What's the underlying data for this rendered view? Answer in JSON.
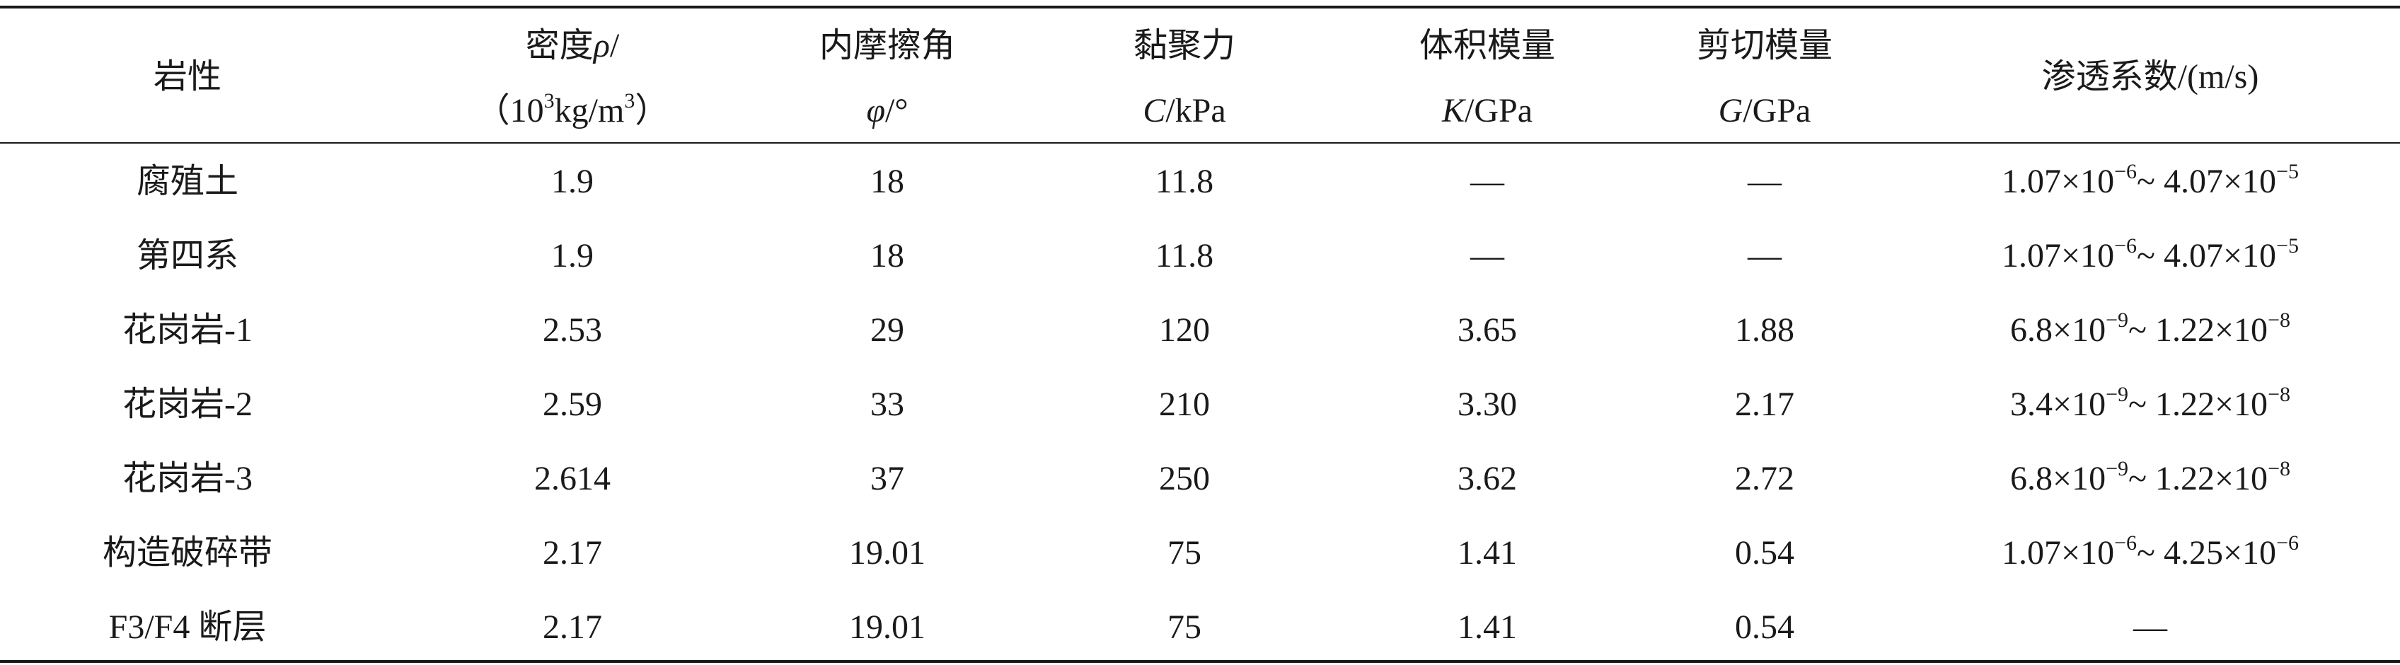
{
  "table": {
    "headers": [
      [
        [
          "岩性"
        ]
      ],
      [
        [
          "密度",
          {
            "i": "ρ"
          },
          "/"
        ],
        [
          "（10",
          {
            "sup": "3"
          },
          "kg/m",
          {
            "sup": "3"
          },
          "）"
        ]
      ],
      [
        [
          "内摩擦角"
        ],
        [
          {
            "i": "φ"
          },
          "/°"
        ]
      ],
      [
        [
          "黏聚力"
        ],
        [
          {
            "i": "C"
          },
          "/kPa"
        ]
      ],
      [
        [
          "体积模量"
        ],
        [
          {
            "i": "K"
          },
          "/GPa"
        ]
      ],
      [
        [
          "剪切模量"
        ],
        [
          {
            "i": "G"
          },
          "/GPa"
        ]
      ],
      [
        [
          "渗透系数/(m/s)"
        ]
      ]
    ],
    "rows": [
      [
        "腐殖土",
        "1.9",
        "18",
        "11.8",
        "—",
        "—",
        [
          "1.07×10",
          {
            "sup": "−6"
          },
          "~ 4.07×10",
          {
            "sup": "−5"
          }
        ]
      ],
      [
        "第四系",
        "1.9",
        "18",
        "11.8",
        "—",
        "—",
        [
          "1.07×10",
          {
            "sup": "−6"
          },
          "~ 4.07×10",
          {
            "sup": "−5"
          }
        ]
      ],
      [
        "花岗岩-1",
        "2.53",
        "29",
        "120",
        "3.65",
        "1.88",
        [
          "6.8×10",
          {
            "sup": "−9"
          },
          "~ 1.22×10",
          {
            "sup": "−8"
          }
        ]
      ],
      [
        "花岗岩-2",
        "2.59",
        "33",
        "210",
        "3.30",
        "2.17",
        [
          "3.4×10",
          {
            "sup": "−9"
          },
          "~ 1.22×10",
          {
            "sup": "−8"
          }
        ]
      ],
      [
        "花岗岩-3",
        "2.614",
        "37",
        "250",
        "3.62",
        "2.72",
        [
          "6.8×10",
          {
            "sup": "−9"
          },
          "~ 1.22×10",
          {
            "sup": "−8"
          }
        ]
      ],
      [
        "构造破碎带",
        "2.17",
        "19.01",
        "75",
        "1.41",
        "0.54",
        [
          "1.07×10",
          {
            "sup": "−6"
          },
          "~ 4.25×10",
          {
            "sup": "−6"
          }
        ]
      ],
      [
        "F3/F4 断层",
        "2.17",
        "19.01",
        "75",
        "1.41",
        "0.54",
        "—"
      ]
    ]
  }
}
